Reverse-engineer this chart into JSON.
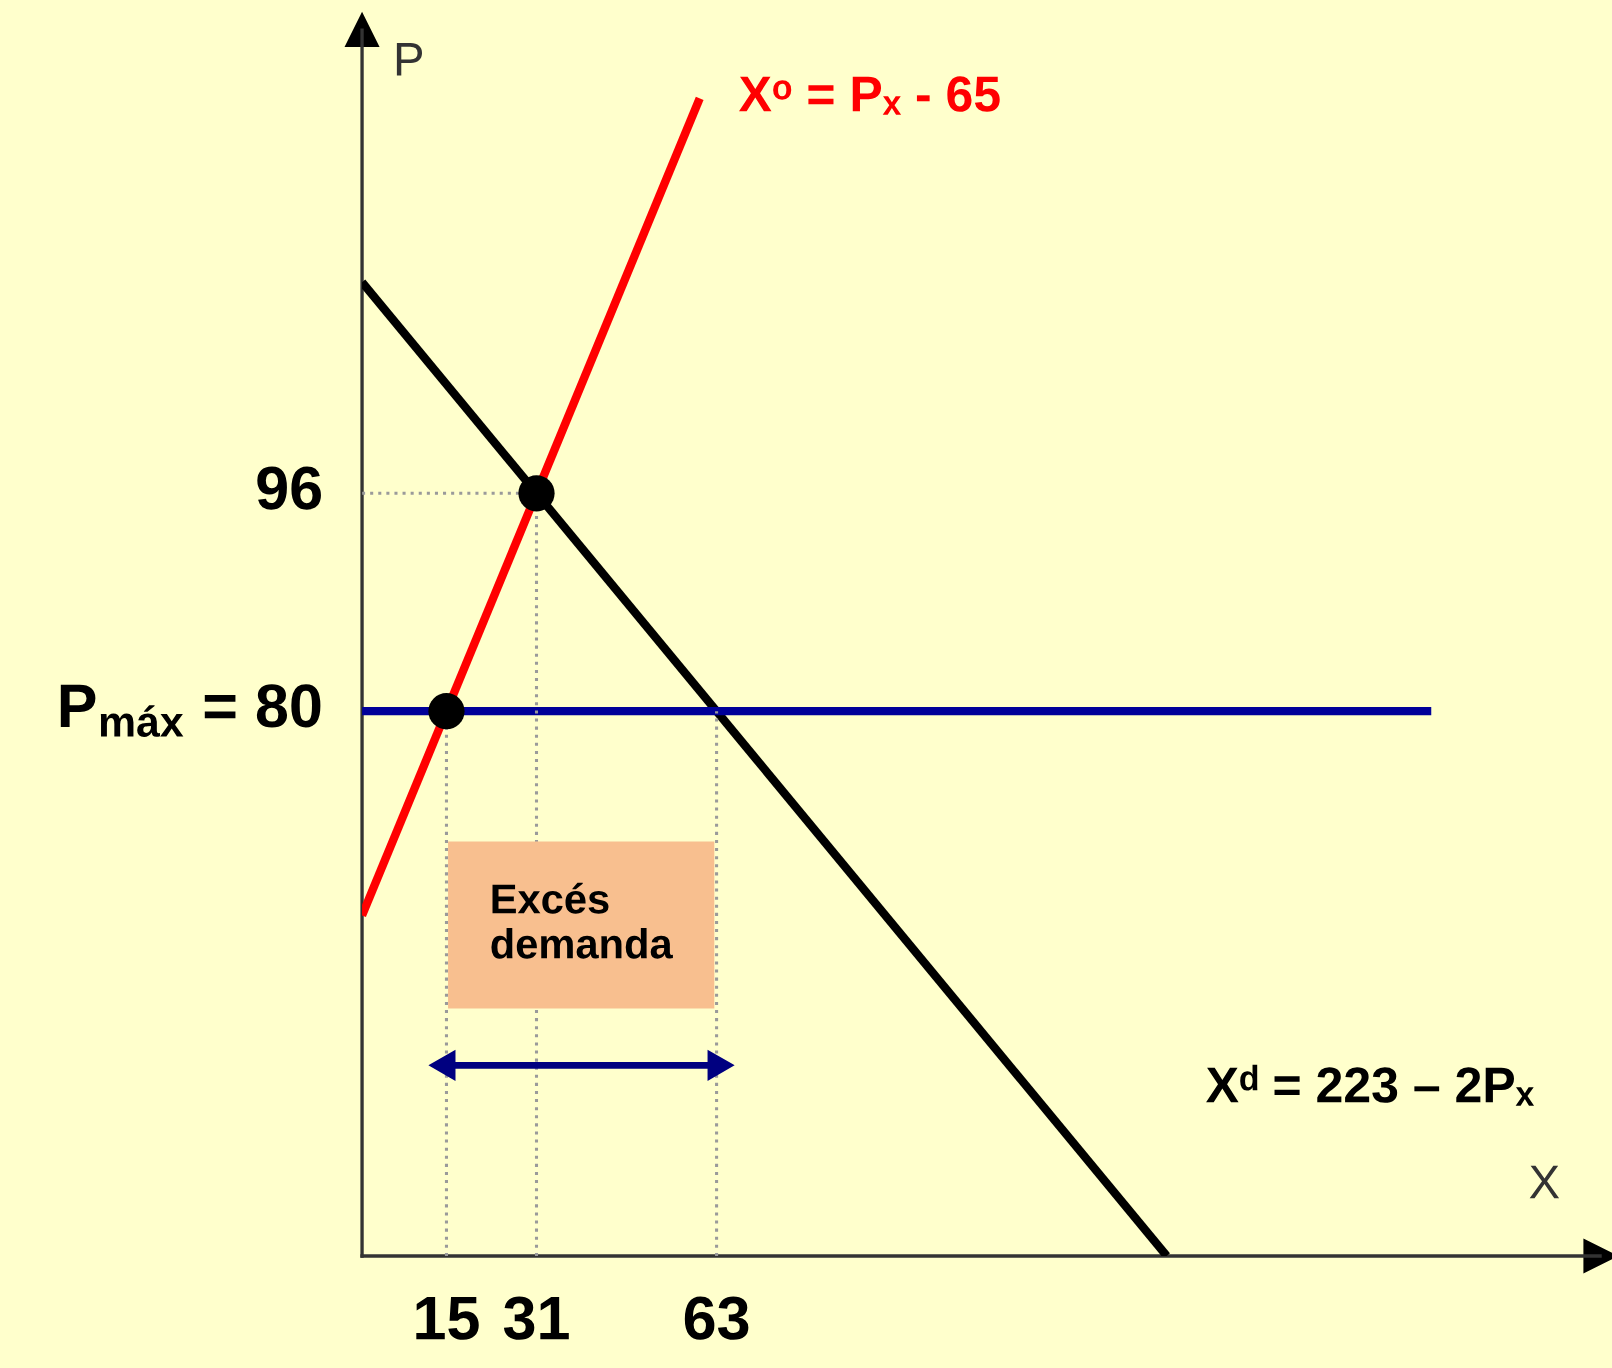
{
  "chart_data": {
    "type": "line",
    "xlabel": "X",
    "ylabel": "P",
    "xlim": [
      0,
      220
    ],
    "ylim": [
      40,
      130
    ],
    "xticks": [
      15,
      31,
      63
    ],
    "yticks": [
      {
        "value": 80,
        "label": "P$_{máx}$ = 80"
      },
      96
    ],
    "annotations": [
      "Excés\ndemanda"
    ],
    "series": [
      {
        "name": "Xᵈ = 223 – 2Pₓ",
        "color": "#000000",
        "x": [
          0,
          143
        ],
        "values": [
          111.5,
          40
        ]
      },
      {
        "name": "Xᵒ = Pₓ - 65",
        "color": "#ff0000",
        "x": [
          0,
          60
        ],
        "values": [
          65,
          125
        ]
      },
      {
        "color": "#000099",
        "x": [
          0,
          190
        ],
        "values": [
          80,
          80
        ]
      },
      {
        "color": "#9a9a9a",
        "line_style": "dotted",
        "x": [
          15,
          15
        ],
        "values": [
          40,
          80
        ]
      },
      {
        "color": "#9a9a9a",
        "line_style": "dotted",
        "x": [
          31,
          31
        ],
        "values": [
          40,
          96
        ]
      },
      {
        "color": "#9a9a9a",
        "line_style": "dotted",
        "x": [
          63,
          63
        ],
        "values": [
          40,
          80
        ]
      },
      {
        "color": "#9a9a9a",
        "line_style": "dotted",
        "x": [
          0,
          31
        ],
        "values": [
          96,
          96
        ]
      },
      {
        "type": "scatter",
        "color": "#000000",
        "marker": "circle",
        "x": [
          15,
          31
        ],
        "values": [
          80,
          96
        ]
      },
      {
        "color": "#000080",
        "marker": "triangle",
        "x": [
          15,
          63
        ],
        "values": [
          54,
          54
        ]
      }
    ]
  }
}
